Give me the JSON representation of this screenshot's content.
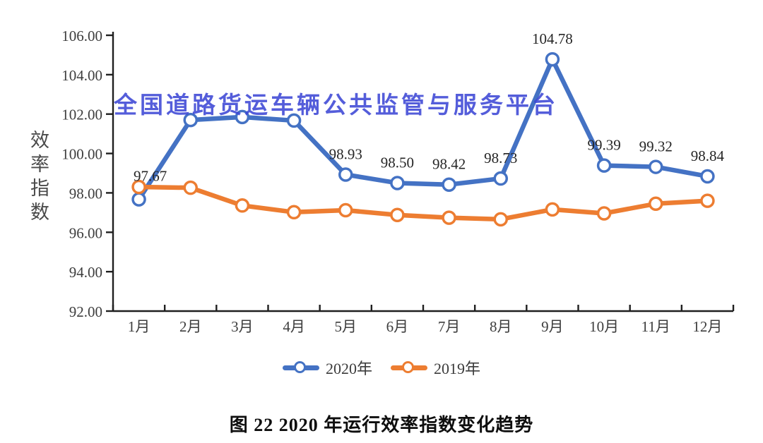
{
  "watermark": {
    "text": "全国道路货运车辆公共监管与服务平台",
    "color": "#3d47d6"
  },
  "caption": {
    "text": "图 22  2020 年运行效率指数变化趋势"
  },
  "chart_data": {
    "type": "line",
    "title": "",
    "xlabel": "",
    "ylabel": "效率指数",
    "ylim": [
      92,
      106
    ],
    "grid": false,
    "legend_position": "bottom",
    "x_categories": [
      "1月",
      "2月",
      "3月",
      "4月",
      "5月",
      "6月",
      "7月",
      "8月",
      "9月",
      "10月",
      "11月",
      "12月"
    ],
    "y_ticks": [
      "106.00",
      "104.00",
      "102.00",
      "100.00",
      "98.00",
      "96.00",
      "94.00",
      "92.00"
    ],
    "series": [
      {
        "name": "2020年",
        "color": "#4472C4",
        "values": [
          97.67,
          101.7,
          101.85,
          101.67,
          98.93,
          98.5,
          98.42,
          98.73,
          104.78,
          99.39,
          99.32,
          98.84
        ],
        "labels": [
          "97.67",
          null,
          null,
          null,
          "98.93",
          "98.50",
          "98.42",
          "98.73",
          "104.78",
          "99.39",
          "99.32",
          "98.84"
        ]
      },
      {
        "name": "2019年",
        "color": "#ED7D31",
        "values": [
          98.3,
          98.26,
          97.36,
          97.02,
          97.12,
          96.88,
          96.74,
          96.66,
          97.16,
          96.96,
          97.45,
          97.6
        ],
        "labels": null
      }
    ]
  }
}
